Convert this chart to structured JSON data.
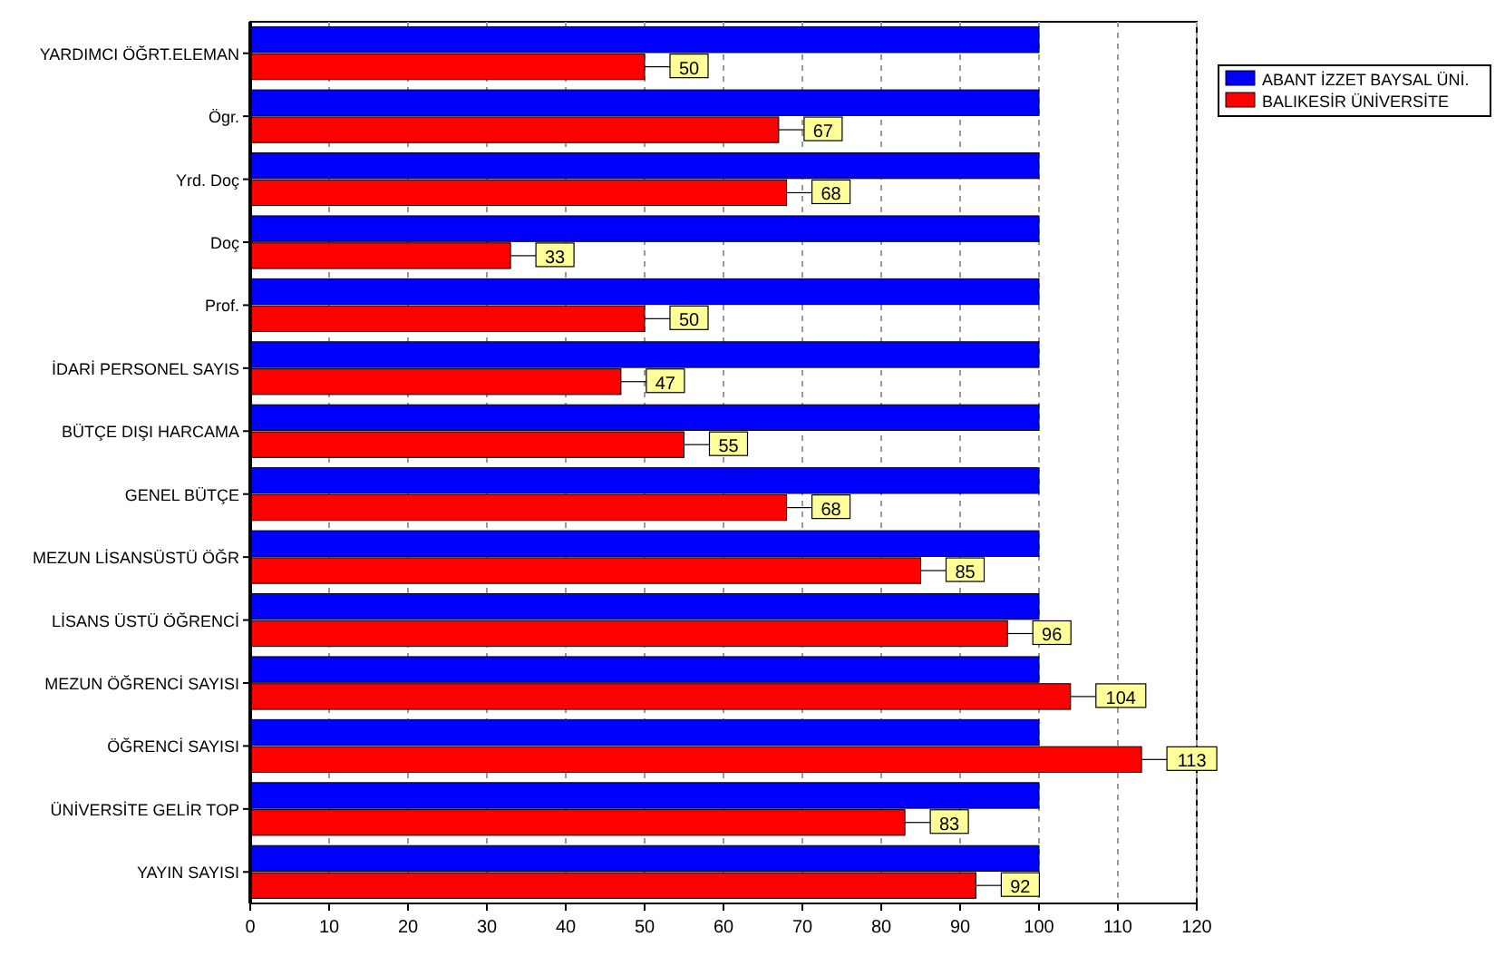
{
  "chart_data": {
    "type": "bar",
    "orientation": "horizontal",
    "categories": [
      "YARDIMCI ÖĞRT.ELEMAN",
      "Ögr.",
      "Yrd. Doç",
      "Doç",
      "Prof.",
      "İDARİ PERSONEL SAYIS",
      "BÜTÇE DIŞI HARCAMA",
      "GENEL BÜTÇE",
      "MEZUN LİSANSÜSTÜ ÖĞR",
      "LİSANS ÜSTÜ ÖĞRENCİ",
      "MEZUN ÖĞRENCİ SAYISI",
      "ÖĞRENCİ SAYISI",
      "ÜNİVERSİTE GELİR TOP",
      "YAYIN SAYISI"
    ],
    "series": [
      {
        "name": "ABANT İZZET BAYSAL ÜNİ.",
        "color": "#0000ff",
        "values": [
          100,
          100,
          100,
          100,
          100,
          100,
          100,
          100,
          100,
          100,
          100,
          100,
          100,
          100
        ]
      },
      {
        "name": "BALIKESİR ÜNİVERSİTE",
        "color": "#ff0000",
        "values": [
          50,
          67,
          68,
          33,
          50,
          47,
          55,
          68,
          85,
          96,
          104,
          113,
          83,
          92
        ],
        "value_labels": [
          "50",
          "67",
          "68",
          "33",
          "50",
          "47",
          "55",
          "68",
          "85",
          "96",
          "104",
          "113",
          "83",
          "92"
        ]
      }
    ],
    "xlim": [
      0,
      120
    ],
    "xticks": [
      0,
      10,
      20,
      30,
      40,
      50,
      60,
      70,
      80,
      90,
      100,
      110,
      120
    ],
    "grid": true,
    "legend": "top right"
  }
}
